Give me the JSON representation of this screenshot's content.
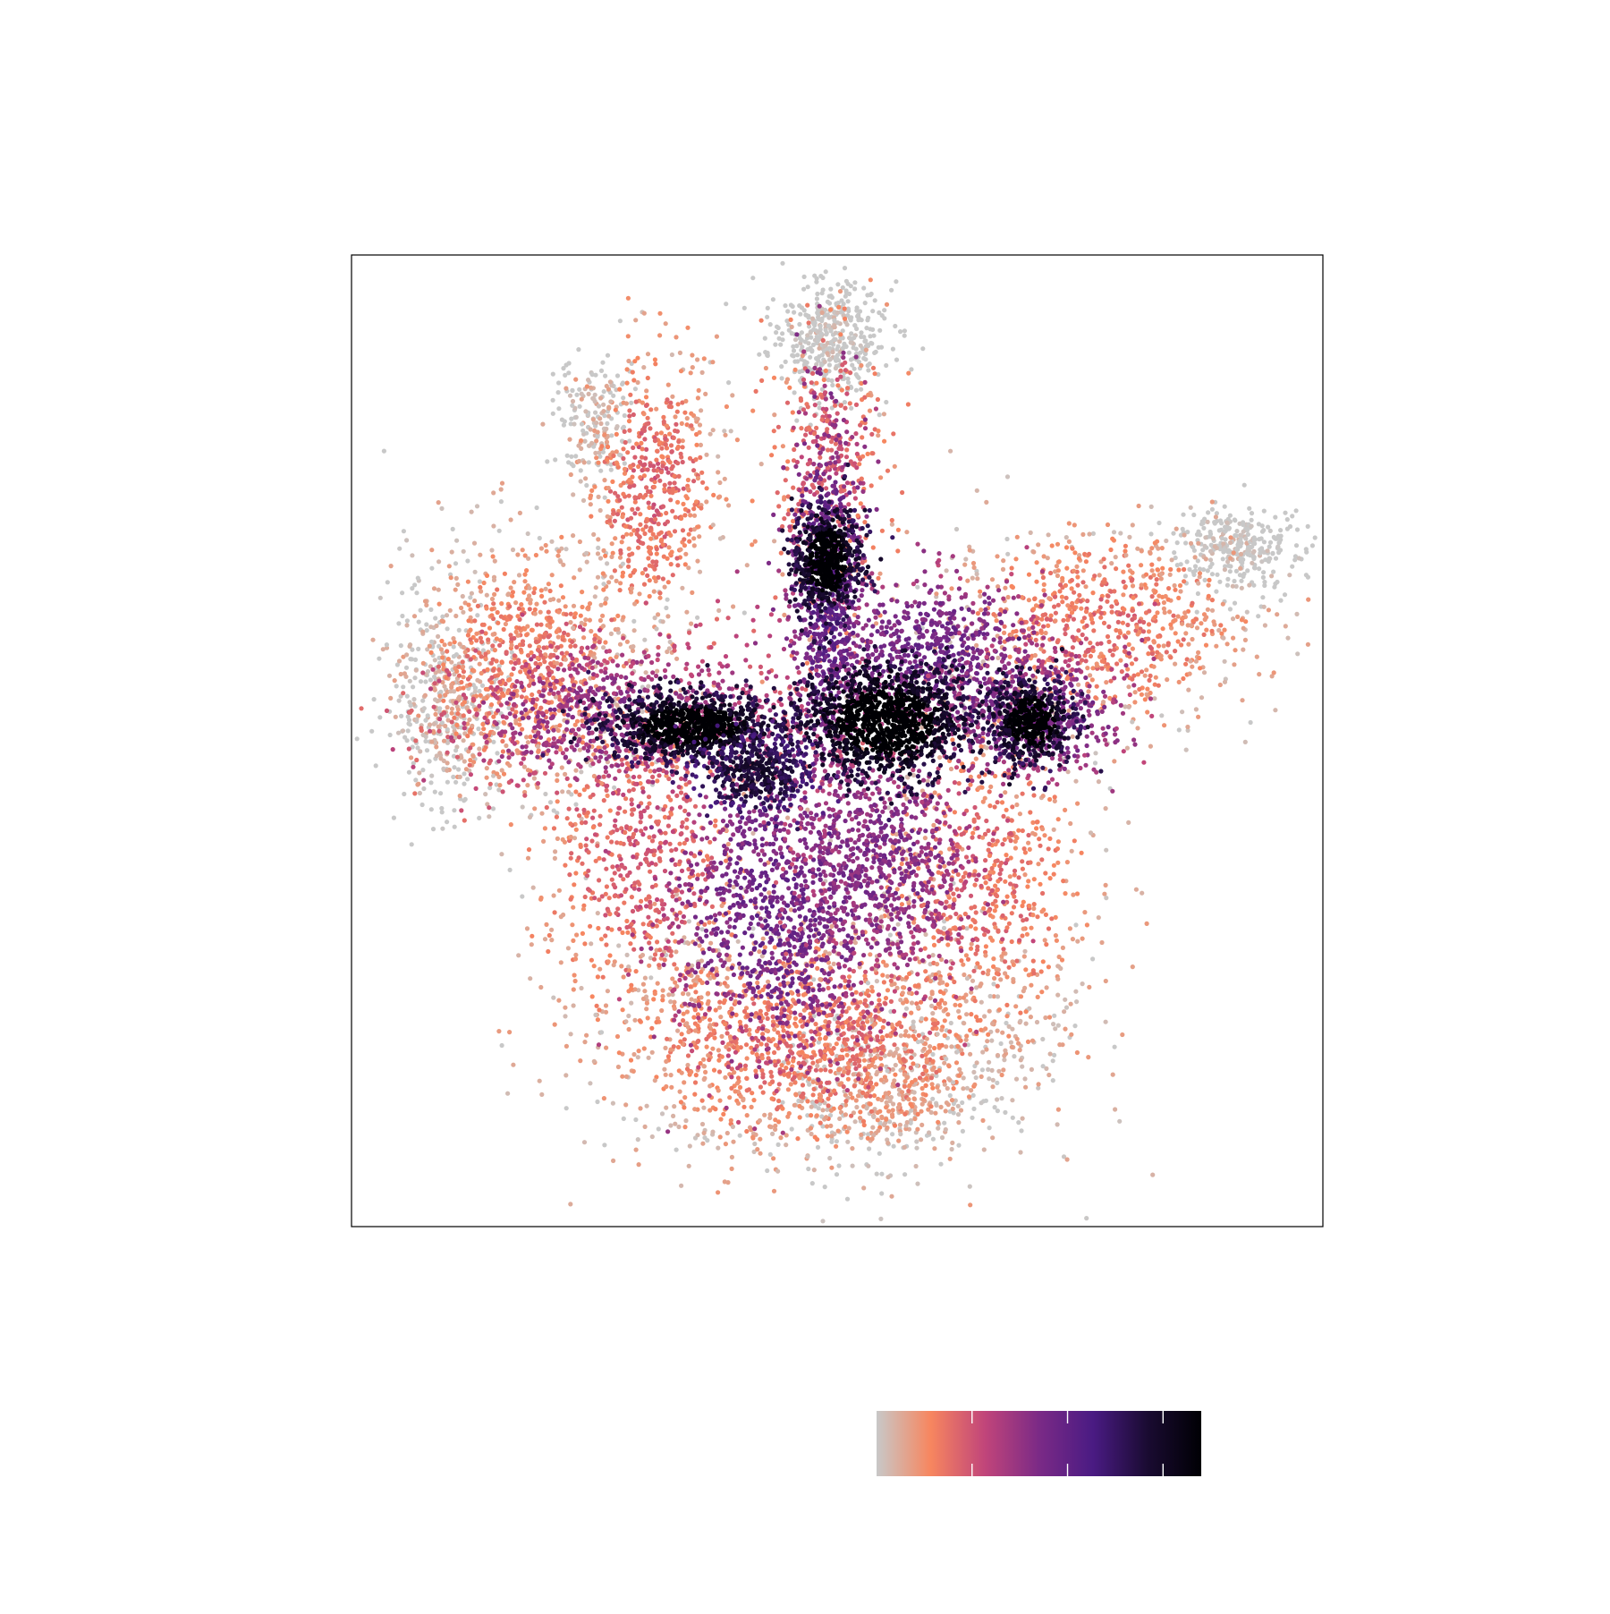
{
  "chart_data": {
    "type": "scatter",
    "title": "",
    "xlabel": "",
    "ylabel": "",
    "grid": false,
    "axis_frame": true,
    "ticks_visible": false,
    "point_color_scale": "density",
    "colormap": {
      "stops": [
        "#c8c8c8",
        "#f7865f",
        "#c1457a",
        "#7b2a86",
        "#4a1b83",
        "#1a0b32",
        "#000004"
      ],
      "tick_labels": [],
      "tick_count": 3,
      "legend_placement": "bottom-right"
    },
    "palette": {
      "low": "#d3d3d3",
      "low_mid": "#f5845f",
      "mid": "#c24a79",
      "mid_high": "#5e1f8a",
      "high": "#000004"
    },
    "clusters": [
      {
        "name": "",
        "center": [
          -0.45,
          0.48
        ],
        "spread": [
          0.06,
          0.045
        ],
        "density": 1.0
      },
      {
        "name": "",
        "center": [
          -0.02,
          0.36
        ],
        "spread": [
          0.11,
          0.06
        ],
        "density": 1.0
      },
      {
        "name": "",
        "center": [
          0.3,
          0.37
        ],
        "spread": [
          0.05,
          0.045
        ],
        "density": 1.0
      },
      {
        "name": "",
        "center": [
          -0.2,
          0.36
        ],
        "spread": [
          0.09,
          0.04
        ],
        "density": 1.0
      }
    ]
  }
}
